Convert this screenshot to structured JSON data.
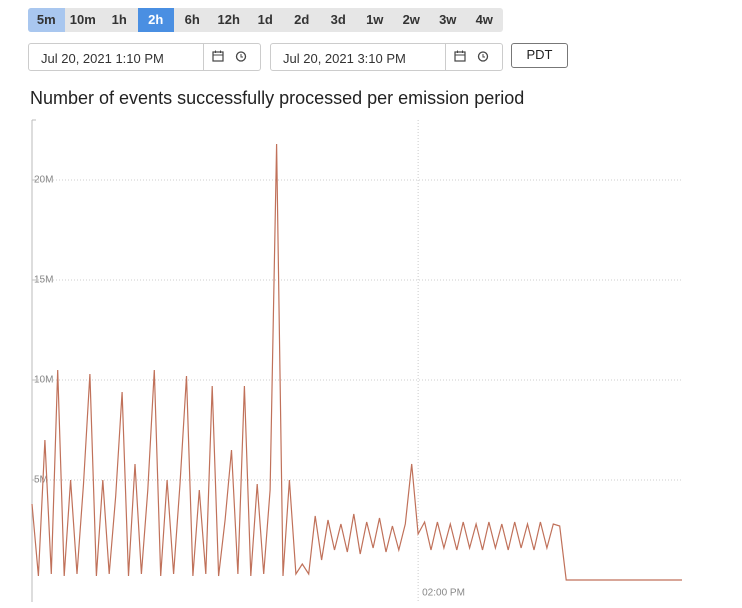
{
  "toolbar": {
    "buttons": [
      "5m",
      "10m",
      "1h",
      "2h",
      "6h",
      "12h",
      "1d",
      "2d",
      "3d",
      "1w",
      "2w",
      "3w",
      "4w"
    ],
    "active": "2h",
    "highlighted": "5m"
  },
  "range": {
    "start": "Jul 20, 2021 1:10 PM",
    "end": "Jul 20, 2021 3:10 PM",
    "timezone": "PDT"
  },
  "chart_data": {
    "type": "line",
    "title": "Number of events successfully processed per emission period",
    "color": "#c0715a",
    "x": [
      780,
      781,
      782,
      783,
      784,
      785,
      786,
      787,
      788,
      789,
      790,
      791,
      792,
      793,
      794,
      795,
      796,
      797,
      798,
      799,
      800,
      801,
      802,
      803,
      804,
      805,
      806,
      807,
      808,
      809,
      810,
      811,
      812,
      813,
      814,
      815,
      816,
      817,
      818,
      819,
      820,
      821,
      822,
      823,
      824,
      825,
      826,
      827,
      828,
      829,
      830,
      831,
      832,
      833,
      834,
      835,
      836,
      837,
      838,
      839,
      840,
      841,
      842,
      843,
      844,
      845,
      846,
      847,
      848,
      849,
      850,
      851,
      852,
      853,
      854,
      855,
      856,
      857,
      858,
      859,
      860,
      861,
      862,
      863,
      864,
      865,
      866,
      867,
      868,
      869,
      870,
      871,
      872,
      873,
      874,
      875,
      876,
      877,
      878,
      879,
      880,
      881
    ],
    "values": [
      3800000,
      200000,
      7000000,
      300000,
      10500000,
      200000,
      5000000,
      300000,
      4800000,
      10300000,
      200000,
      5000000,
      300000,
      4200000,
      9400000,
      200000,
      5800000,
      300000,
      4500000,
      10500000,
      200000,
      5000000,
      300000,
      4800000,
      10200000,
      200000,
      4500000,
      300000,
      9700000,
      200000,
      3000000,
      6500000,
      300000,
      9700000,
      200000,
      4800000,
      300000,
      4500000,
      21800000,
      200000,
      5000000,
      300000,
      800000,
      300000,
      3200000,
      1000000,
      3000000,
      1500000,
      2800000,
      1400000,
      3300000,
      1300000,
      2900000,
      1600000,
      3100000,
      1400000,
      2700000,
      1500000,
      2800000,
      5800000,
      2300000,
      2900000,
      1500000,
      2900000,
      1600000,
      2800000,
      1500000,
      2900000,
      1600000,
      2800000,
      1500000,
      2900000,
      1600000,
      2800000,
      1500000,
      2900000,
      1600000,
      2800000,
      1500000,
      2900000,
      1600000,
      2800000,
      2700000,
      0,
      0,
      0,
      0,
      0,
      0,
      0,
      0,
      0,
      0,
      0,
      0,
      0,
      0,
      0,
      0,
      0,
      0,
      0
    ],
    "xlim": [
      780,
      881
    ],
    "xticks": [
      {
        "value": 840,
        "label": "02:00 PM"
      }
    ],
    "ylim": [
      0,
      23000000
    ],
    "yticks": [
      {
        "value": 5000000,
        "label": "5M"
      },
      {
        "value": 10000000,
        "label": "10M"
      },
      {
        "value": 15000000,
        "label": "15M"
      },
      {
        "value": 20000000,
        "label": "20M"
      }
    ],
    "grid": true
  }
}
